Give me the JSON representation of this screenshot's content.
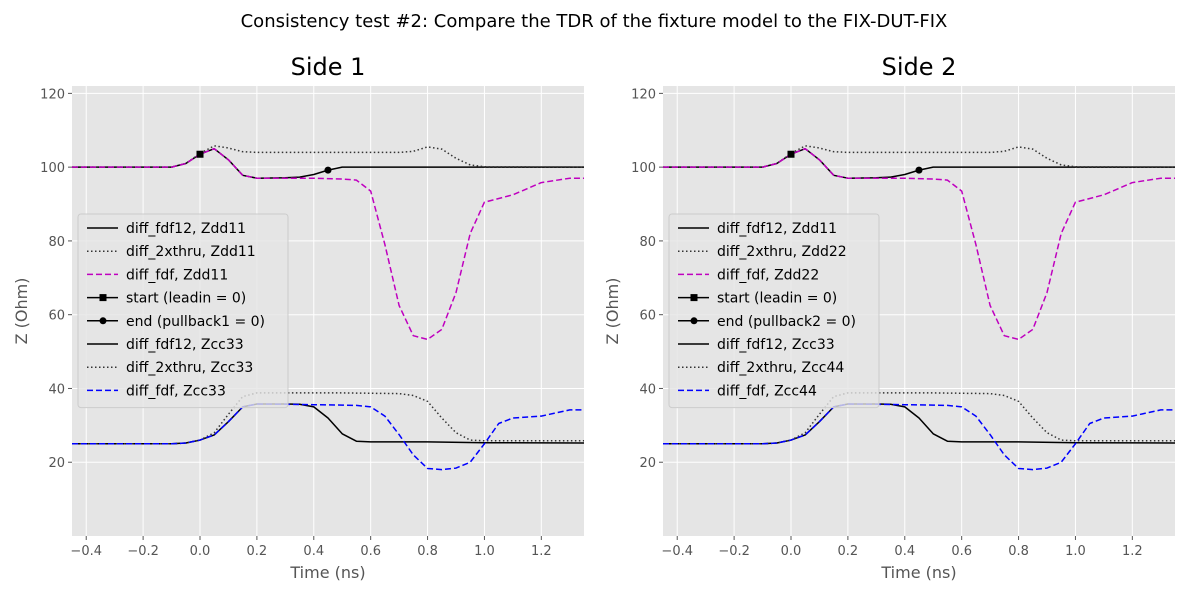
{
  "suptitle": "Consistency test #2: Compare the TDR of the fixture model to the FIX-DUT-FIX",
  "colors": {
    "black": "#000000",
    "gray": "#333333",
    "magenta": "#bf00bf",
    "blue": "#0000ff",
    "panel_bg": "#e5e5e5"
  },
  "chart_data": [
    {
      "type": "line",
      "title": "Side 1",
      "xlabel": "Time (ns)",
      "ylabel": "Z (Ohm)",
      "xlim": [
        -0.45,
        1.35
      ],
      "ylim": [
        0,
        122
      ],
      "xticks": [
        -0.4,
        -0.2,
        0.0,
        0.2,
        0.4,
        0.6,
        0.8,
        1.0,
        1.2
      ],
      "xtick_labels": [
        "−0.4",
        "−0.2",
        "0.0",
        "0.2",
        "0.4",
        "0.6",
        "0.8",
        "1.0",
        "1.2"
      ],
      "yticks": [
        20,
        40,
        60,
        80,
        100,
        120
      ],
      "ytick_labels": [
        "20",
        "40",
        "60",
        "80",
        "100",
        "120"
      ],
      "grid": true,
      "legend_position": "center-left",
      "legend": [
        {
          "label": "diff_fdf12, Zdd11",
          "color": "#000000",
          "style": "solid",
          "marker": "none"
        },
        {
          "label": "diff_2xthru, Zdd11",
          "color": "#333333",
          "style": "dotted",
          "marker": "none"
        },
        {
          "label": "diff_fdf, Zdd11",
          "color": "#bf00bf",
          "style": "dashed",
          "marker": "none"
        },
        {
          "label": "start (leadin = 0)",
          "color": "#000000",
          "style": "solid",
          "marker": "square"
        },
        {
          "label": "end (pullback1 = 0)",
          "color": "#000000",
          "style": "solid",
          "marker": "circle"
        },
        {
          "label": "diff_fdf12, Zcc33",
          "color": "#000000",
          "style": "solid",
          "marker": "none"
        },
        {
          "label": "diff_2xthru, Zcc33",
          "color": "#333333",
          "style": "dotted",
          "marker": "none"
        },
        {
          "label": "diff_fdf, Zcc33",
          "color": "#0000ff",
          "style": "dashed",
          "marker": "none"
        }
      ],
      "series": [
        {
          "name": "diff_fdf12, Zdd11",
          "color": "#000000",
          "style": "solid",
          "x": [
            -0.45,
            -0.1,
            -0.05,
            0.0,
            0.05,
            0.1,
            0.15,
            0.2,
            0.3,
            0.35,
            0.4,
            0.45,
            0.5,
            0.6,
            0.8,
            1.0,
            1.35
          ],
          "y": [
            100,
            100,
            101,
            103.5,
            105,
            102,
            97.8,
            97,
            97.1,
            97.3,
            98,
            99.2,
            100,
            100,
            100,
            100,
            100
          ]
        },
        {
          "name": "diff_2xthru, Zdd11",
          "color": "#333333",
          "style": "dotted",
          "x": [
            -0.45,
            -0.1,
            -0.05,
            0.0,
            0.05,
            0.1,
            0.15,
            0.2,
            0.3,
            0.5,
            0.6,
            0.7,
            0.75,
            0.8,
            0.85,
            0.9,
            0.95,
            1.0,
            1.35
          ],
          "y": [
            100,
            100,
            101,
            103.7,
            105.8,
            105.2,
            104.2,
            104,
            104,
            104,
            104,
            104,
            104.3,
            105.5,
            104.9,
            102.4,
            100.6,
            100.1,
            100
          ]
        },
        {
          "name": "diff_fdf, Zdd11",
          "color": "#bf00bf",
          "style": "dashed",
          "x": [
            -0.45,
            -0.1,
            -0.05,
            0.0,
            0.05,
            0.1,
            0.15,
            0.2,
            0.3,
            0.4,
            0.5,
            0.55,
            0.6,
            0.65,
            0.7,
            0.75,
            0.8,
            0.85,
            0.9,
            0.95,
            1.0,
            1.1,
            1.2,
            1.3,
            1.35
          ],
          "y": [
            100,
            100,
            101,
            103.5,
            105,
            102,
            97.8,
            97,
            97,
            97,
            96.8,
            96.5,
            93.5,
            79,
            62.5,
            54.3,
            53.3,
            56,
            66,
            82,
            90.5,
            92.5,
            95.8,
            97,
            97
          ]
        },
        {
          "name": "diff_fdf12, Zcc33",
          "color": "#000000",
          "style": "solid",
          "x": [
            -0.45,
            -0.1,
            -0.05,
            0.0,
            0.05,
            0.1,
            0.15,
            0.2,
            0.3,
            0.35,
            0.4,
            0.45,
            0.5,
            0.55,
            0.6,
            0.8,
            1.0,
            1.35
          ],
          "y": [
            25,
            25,
            25.2,
            26,
            27.4,
            31,
            35,
            35.8,
            35.8,
            35.7,
            35,
            32,
            27.7,
            25.7,
            25.5,
            25.5,
            25.3,
            25.2
          ]
        },
        {
          "name": "diff_2xthru, Zcc33",
          "color": "#333333",
          "style": "dotted",
          "x": [
            -0.45,
            -0.1,
            -0.05,
            0.0,
            0.05,
            0.1,
            0.15,
            0.2,
            0.3,
            0.5,
            0.7,
            0.75,
            0.8,
            0.85,
            0.9,
            0.95,
            1.0,
            1.35
          ],
          "y": [
            25,
            25,
            25.2,
            26,
            28,
            33,
            37.8,
            38.8,
            38.8,
            38.8,
            38.6,
            38.1,
            36.5,
            32,
            28,
            26,
            25.8,
            25.8
          ]
        },
        {
          "name": "diff_fdf, Zcc33",
          "color": "#0000ff",
          "style": "dashed",
          "x": [
            -0.45,
            -0.1,
            -0.05,
            0.0,
            0.05,
            0.1,
            0.15,
            0.2,
            0.3,
            0.4,
            0.5,
            0.55,
            0.6,
            0.65,
            0.7,
            0.75,
            0.8,
            0.85,
            0.9,
            0.95,
            1.0,
            1.05,
            1.1,
            1.2,
            1.3,
            1.35
          ],
          "y": [
            25,
            25,
            25.2,
            26,
            27.4,
            31,
            35,
            35.8,
            35.7,
            35.6,
            35.5,
            35.4,
            35,
            32.5,
            27.5,
            22,
            18.3,
            18,
            18.4,
            20,
            25,
            30.5,
            32,
            32.5,
            34.2,
            34.2
          ]
        }
      ],
      "markers": [
        {
          "name": "start (leadin = 0)",
          "shape": "square",
          "x": 0.0,
          "y": 103.5
        },
        {
          "name": "end (pullback1 = 0)",
          "shape": "circle",
          "x": 0.45,
          "y": 99.2
        }
      ]
    },
    {
      "type": "line",
      "title": "Side 2",
      "xlabel": "Time (ns)",
      "ylabel": "Z (Ohm)",
      "xlim": [
        -0.45,
        1.35
      ],
      "ylim": [
        0,
        122
      ],
      "xticks": [
        -0.4,
        -0.2,
        0.0,
        0.2,
        0.4,
        0.6,
        0.8,
        1.0,
        1.2
      ],
      "xtick_labels": [
        "−0.4",
        "−0.2",
        "0.0",
        "0.2",
        "0.4",
        "0.6",
        "0.8",
        "1.0",
        "1.2"
      ],
      "yticks": [
        20,
        40,
        60,
        80,
        100,
        120
      ],
      "ytick_labels": [
        "20",
        "40",
        "60",
        "80",
        "100",
        "120"
      ],
      "grid": true,
      "legend_position": "center-left",
      "legend": [
        {
          "label": "diff_fdf12, Zdd11",
          "color": "#000000",
          "style": "solid",
          "marker": "none"
        },
        {
          "label": "diff_2xthru, Zdd22",
          "color": "#333333",
          "style": "dotted",
          "marker": "none"
        },
        {
          "label": "diff_fdf, Zdd22",
          "color": "#bf00bf",
          "style": "dashed",
          "marker": "none"
        },
        {
          "label": "start (leadin = 0)",
          "color": "#000000",
          "style": "solid",
          "marker": "square"
        },
        {
          "label": "end (pullback2 = 0)",
          "color": "#000000",
          "style": "solid",
          "marker": "circle"
        },
        {
          "label": "diff_fdf12, Zcc33",
          "color": "#000000",
          "style": "solid",
          "marker": "none"
        },
        {
          "label": "diff_2xthru, Zcc44",
          "color": "#333333",
          "style": "dotted",
          "marker": "none"
        },
        {
          "label": "diff_fdf, Zcc44",
          "color": "#0000ff",
          "style": "dashed",
          "marker": "none"
        }
      ],
      "series": [
        {
          "name": "diff_fdf12, Zdd11",
          "color": "#000000",
          "style": "solid",
          "x": [
            -0.45,
            -0.1,
            -0.05,
            0.0,
            0.05,
            0.1,
            0.15,
            0.2,
            0.3,
            0.35,
            0.4,
            0.45,
            0.5,
            0.6,
            0.8,
            1.0,
            1.35
          ],
          "y": [
            100,
            100,
            101,
            103.5,
            105,
            102,
            97.8,
            97,
            97.1,
            97.3,
            98,
            99.2,
            100,
            100,
            100,
            100,
            100
          ]
        },
        {
          "name": "diff_2xthru, Zdd22",
          "color": "#333333",
          "style": "dotted",
          "x": [
            -0.45,
            -0.1,
            -0.05,
            0.0,
            0.05,
            0.1,
            0.15,
            0.2,
            0.3,
            0.5,
            0.6,
            0.7,
            0.75,
            0.8,
            0.85,
            0.9,
            0.95,
            1.0,
            1.35
          ],
          "y": [
            100,
            100,
            101,
            103.7,
            105.8,
            105.2,
            104.2,
            104,
            104,
            104,
            104,
            104,
            104.3,
            105.5,
            104.9,
            102.4,
            100.6,
            100.1,
            100
          ]
        },
        {
          "name": "diff_fdf, Zdd22",
          "color": "#bf00bf",
          "style": "dashed",
          "x": [
            -0.45,
            -0.1,
            -0.05,
            0.0,
            0.05,
            0.1,
            0.15,
            0.2,
            0.3,
            0.4,
            0.5,
            0.55,
            0.6,
            0.65,
            0.7,
            0.75,
            0.8,
            0.85,
            0.9,
            0.95,
            1.0,
            1.1,
            1.2,
            1.3,
            1.35
          ],
          "y": [
            100,
            100,
            101,
            103.5,
            105,
            102,
            97.8,
            97,
            97,
            97,
            96.8,
            96.5,
            93.5,
            79,
            62.5,
            54.3,
            53.3,
            56,
            66,
            82,
            90.5,
            92.5,
            95.8,
            97,
            97
          ]
        },
        {
          "name": "diff_fdf12, Zcc33",
          "color": "#000000",
          "style": "solid",
          "x": [
            -0.45,
            -0.1,
            -0.05,
            0.0,
            0.05,
            0.1,
            0.15,
            0.2,
            0.3,
            0.35,
            0.4,
            0.45,
            0.5,
            0.55,
            0.6,
            0.8,
            1.0,
            1.35
          ],
          "y": [
            25,
            25,
            25.2,
            26,
            27.4,
            31,
            35,
            35.8,
            35.8,
            35.7,
            35,
            32,
            27.7,
            25.7,
            25.5,
            25.5,
            25.3,
            25.2
          ]
        },
        {
          "name": "diff_2xthru, Zcc44",
          "color": "#333333",
          "style": "dotted",
          "x": [
            -0.45,
            -0.1,
            -0.05,
            0.0,
            0.05,
            0.1,
            0.15,
            0.2,
            0.3,
            0.5,
            0.7,
            0.75,
            0.8,
            0.85,
            0.9,
            0.95,
            1.0,
            1.35
          ],
          "y": [
            25,
            25,
            25.2,
            26,
            28,
            33,
            37.8,
            38.8,
            38.8,
            38.8,
            38.6,
            38.1,
            36.5,
            32,
            28,
            26,
            25.8,
            25.8
          ]
        },
        {
          "name": "diff_fdf, Zcc44",
          "color": "#0000ff",
          "style": "dashed",
          "x": [
            -0.45,
            -0.1,
            -0.05,
            0.0,
            0.05,
            0.1,
            0.15,
            0.2,
            0.3,
            0.4,
            0.5,
            0.55,
            0.6,
            0.65,
            0.7,
            0.75,
            0.8,
            0.85,
            0.9,
            0.95,
            1.0,
            1.05,
            1.1,
            1.2,
            1.3,
            1.35
          ],
          "y": [
            25,
            25,
            25.2,
            26,
            27.4,
            31,
            35,
            35.8,
            35.7,
            35.6,
            35.5,
            35.4,
            35,
            32.5,
            27.5,
            22,
            18.3,
            18,
            18.4,
            20,
            25,
            30.5,
            32,
            32.5,
            34.2,
            34.2
          ]
        }
      ],
      "markers": [
        {
          "name": "start (leadin = 0)",
          "shape": "square",
          "x": 0.0,
          "y": 103.5
        },
        {
          "name": "end (pullback2 = 0)",
          "shape": "circle",
          "x": 0.45,
          "y": 99.2
        }
      ]
    }
  ]
}
